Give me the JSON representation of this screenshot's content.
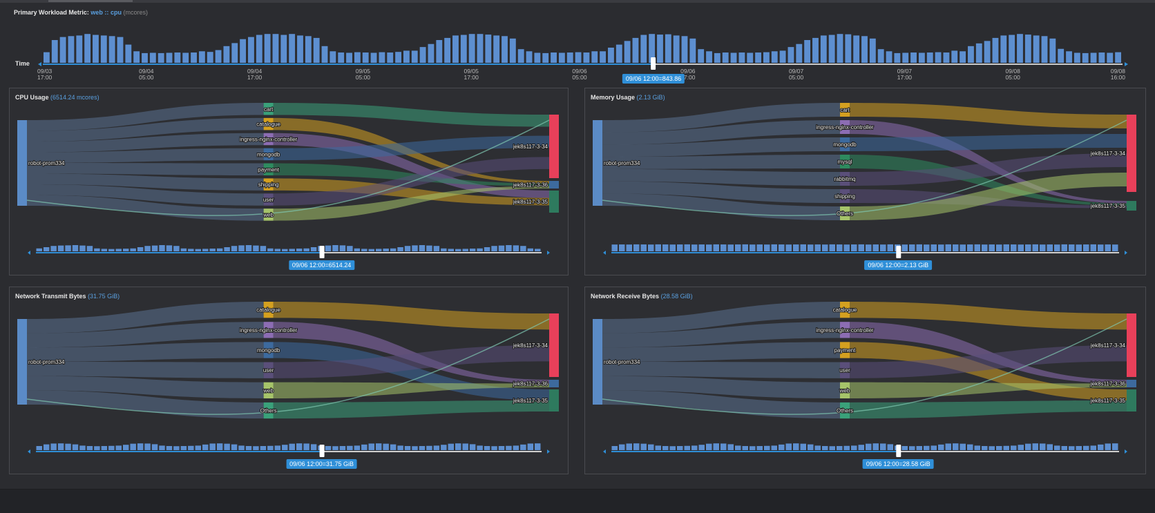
{
  "metric": {
    "label": "Primary Workload Metric:",
    "workload": "web",
    "sep": "::",
    "metric": "cpu",
    "unit": "(mcores)"
  },
  "timeline": {
    "time_label": "Time",
    "ticks": [
      [
        "09/03",
        "17:00"
      ],
      [
        "09/04",
        "05:00"
      ],
      [
        "09/04",
        "17:00"
      ],
      [
        "09/05",
        "05:00"
      ],
      [
        "09/05",
        "17:00"
      ],
      [
        "09/06",
        "05:00"
      ],
      [
        "09/06",
        "17:00"
      ],
      [
        "09/07",
        "05:00"
      ],
      [
        "09/07",
        "17:00"
      ],
      [
        "09/08",
        "05:00"
      ],
      [
        "09/08",
        "16:00"
      ]
    ],
    "bar_levels": [
      0.35,
      0.75,
      0.85,
      0.88,
      0.9,
      0.95,
      0.92,
      0.9,
      0.88,
      0.85,
      0.6,
      0.38,
      0.32,
      0.33,
      0.32,
      0.33,
      0.34,
      0.33,
      0.34,
      0.38,
      0.36,
      0.42,
      0.55,
      0.65,
      0.78,
      0.85,
      0.92,
      0.95,
      0.95,
      0.92,
      0.95,
      0.9,
      0.88,
      0.82,
      0.55,
      0.38,
      0.34,
      0.33,
      0.35,
      0.34,
      0.33,
      0.35,
      0.34,
      0.36,
      0.4,
      0.4,
      0.52,
      0.62,
      0.75,
      0.82,
      0.9,
      0.92,
      0.95,
      0.95,
      0.93,
      0.9,
      0.88,
      0.8,
      0.45,
      0.38,
      0.33,
      0.32,
      0.34,
      0.33,
      0.34,
      0.35,
      0.34,
      0.38,
      0.38,
      0.5,
      0.6,
      0.72,
      0.82,
      0.92,
      0.95,
      0.93,
      0.94,
      0.9,
      0.88,
      0.8,
      0.45,
      0.38,
      0.32,
      0.34,
      0.33,
      0.34,
      0.33,
      0.34,
      0.35,
      0.38,
      0.4,
      0.52,
      0.62,
      0.75,
      0.82,
      0.9,
      0.92,
      0.95,
      0.94,
      0.9,
      0.88,
      0.8,
      0.45,
      0.38,
      0.32,
      0.33,
      0.34,
      0.33,
      0.34,
      0.35,
      0.34,
      0.4,
      0.38,
      0.55,
      0.64,
      0.72,
      0.82,
      0.9,
      0.92,
      0.95,
      0.93,
      0.9,
      0.88,
      0.8,
      0.46,
      0.38,
      0.33,
      0.32,
      0.33,
      0.34,
      0.33,
      0.35
    ],
    "selected_fraction": 0.565,
    "selected_label": "09/06 12:00=843.86"
  },
  "panels": [
    {
      "title": "CPU Usage",
      "value": "(6514.24 mcores)",
      "source": "robot-prom334",
      "middle": [
        [
          "cart",
          "#3aa17a"
        ],
        [
          "catalogue",
          "#d4a020"
        ],
        [
          "ingress-nginx-controller",
          "#8c6db3"
        ],
        [
          "mongodb",
          "#3d6a9e"
        ],
        [
          "payment",
          "#2e8b5f"
        ],
        [
          "shipping",
          "#d4a020"
        ],
        [
          "user",
          "#5a4f7a"
        ],
        [
          "web",
          "#a6c46a"
        ]
      ],
      "targets": [
        [
          "jek8s117-3-34",
          "#e8405a"
        ],
        [
          "jek8s117-3-36",
          "#3d6a9e"
        ],
        [
          "jek8s117-3-35",
          "#2e7a5e"
        ]
      ],
      "selected_label": "09/06 12:00=6514.24",
      "mini_levels": [
        0.35,
        0.5,
        0.65,
        0.7,
        0.72,
        0.75,
        0.7,
        0.65,
        0.35,
        0.3,
        0.28,
        0.3,
        0.32,
        0.35,
        0.5,
        0.65,
        0.7,
        0.75,
        0.72,
        0.65,
        0.35,
        0.3,
        0.28,
        0.3,
        0.33,
        0.35,
        0.5,
        0.65,
        0.72,
        0.75,
        0.7,
        0.65,
        0.35,
        0.3,
        0.28,
        0.3,
        0.33,
        0.35,
        0.5,
        0.65,
        0.7,
        0.75,
        0.72,
        0.65,
        0.35,
        0.3,
        0.28,
        0.3,
        0.33,
        0.35,
        0.5,
        0.65,
        0.72,
        0.75,
        0.7,
        0.65,
        0.35,
        0.3,
        0.28,
        0.3,
        0.33,
        0.35,
        0.5,
        0.65,
        0.7,
        0.75,
        0.72,
        0.65,
        0.35,
        0.3
      ]
    },
    {
      "title": "Memory Usage",
      "value": "(2.13 GiB)",
      "source": "robot-prom334",
      "middle": [
        [
          "cart",
          "#d4a020"
        ],
        [
          "ingress-nginx-controller",
          "#8c6db3"
        ],
        [
          "mongodb",
          "#3d6a9e"
        ],
        [
          "mysql",
          "#2e8b5f"
        ],
        [
          "rabbitmq",
          "#5a4f7a"
        ],
        [
          "shipping",
          "#5a4f7a"
        ],
        [
          "Others",
          "#a6c46a"
        ]
      ],
      "targets": [
        [
          "jek8s117-3-34",
          "#e8405a"
        ],
        [
          "jek8s117-3-35",
          "#2e7a5e"
        ]
      ],
      "selected_label": "09/06 12:00=2.13 GiB",
      "mini_levels": [
        0.82,
        0.83,
        0.82,
        0.84,
        0.83,
        0.82,
        0.84,
        0.83,
        0.82,
        0.83,
        0.84,
        0.82,
        0.83,
        0.82,
        0.84,
        0.83,
        0.82,
        0.83,
        0.84,
        0.82,
        0.83,
        0.82,
        0.84,
        0.83,
        0.82,
        0.83,
        0.84,
        0.82,
        0.83,
        0.82,
        0.84,
        0.83,
        0.82,
        0.83,
        0.84,
        0.82,
        0.83,
        0.82,
        0.84,
        0.83,
        0.82,
        0.83,
        0.84,
        0.82,
        0.83,
        0.82,
        0.84,
        0.83,
        0.82,
        0.83,
        0.84,
        0.82,
        0.83,
        0.82,
        0.84,
        0.83,
        0.82,
        0.83,
        0.84,
        0.82,
        0.83,
        0.82,
        0.84,
        0.83,
        0.82,
        0.83,
        0.84,
        0.82,
        0.83,
        0.82
      ]
    },
    {
      "title": "Network Transmit Bytes",
      "value": "(31.75 GiB)",
      "source": "robot-prom334",
      "middle": [
        [
          "catalogue",
          "#d4a020"
        ],
        [
          "ingress-nginx-controller",
          "#8c6db3"
        ],
        [
          "mongodb",
          "#3d6a9e"
        ],
        [
          "user",
          "#5a4f7a"
        ],
        [
          "web",
          "#a6c46a"
        ],
        [
          "Others",
          "#3aa17a"
        ]
      ],
      "targets": [
        [
          "jek8s117-3-34",
          "#e8405a"
        ],
        [
          "jek8s117-3-36",
          "#3d6a9e"
        ],
        [
          "jek8s117-3-35",
          "#2e7a5e"
        ]
      ],
      "selected_label": "09/06 12:00=31.75 GiB",
      "mini_levels": [
        0.5,
        0.7,
        0.8,
        0.82,
        0.78,
        0.7,
        0.55,
        0.5,
        0.48,
        0.5,
        0.52,
        0.55,
        0.65,
        0.78,
        0.82,
        0.8,
        0.72,
        0.55,
        0.5,
        0.48,
        0.5,
        0.52,
        0.55,
        0.68,
        0.8,
        0.82,
        0.78,
        0.7,
        0.55,
        0.5,
        0.48,
        0.5,
        0.52,
        0.55,
        0.65,
        0.78,
        0.82,
        0.8,
        0.72,
        0.55,
        0.5,
        0.48,
        0.5,
        0.52,
        0.55,
        0.68,
        0.8,
        0.82,
        0.78,
        0.7,
        0.55,
        0.5,
        0.48,
        0.5,
        0.52,
        0.55,
        0.65,
        0.78,
        0.82,
        0.8,
        0.72,
        0.55,
        0.5,
        0.48,
        0.5,
        0.52,
        0.55,
        0.68,
        0.8,
        0.82
      ]
    },
    {
      "title": "Network Receive Bytes",
      "value": "(28.58 GiB)",
      "source": "robot-prom334",
      "middle": [
        [
          "catalogue",
          "#d4a020"
        ],
        [
          "ingress-nginx-controller",
          "#8c6db3"
        ],
        [
          "payment",
          "#d4a020"
        ],
        [
          "user",
          "#5a4f7a"
        ],
        [
          "web",
          "#a6c46a"
        ],
        [
          "Others",
          "#3aa17a"
        ]
      ],
      "targets": [
        [
          "jek8s117-3-34",
          "#e8405a"
        ],
        [
          "jek8s117-3-36",
          "#3d6a9e"
        ],
        [
          "jek8s117-3-35",
          "#2e7a5e"
        ]
      ],
      "selected_label": "09/06 12:00=28.58 GiB",
      "mini_levels": [
        0.5,
        0.7,
        0.8,
        0.82,
        0.78,
        0.7,
        0.55,
        0.5,
        0.48,
        0.5,
        0.52,
        0.55,
        0.65,
        0.78,
        0.82,
        0.8,
        0.72,
        0.55,
        0.5,
        0.48,
        0.5,
        0.52,
        0.55,
        0.68,
        0.8,
        0.82,
        0.78,
        0.7,
        0.55,
        0.5,
        0.48,
        0.5,
        0.52,
        0.55,
        0.65,
        0.78,
        0.82,
        0.8,
        0.72,
        0.55,
        0.5,
        0.48,
        0.5,
        0.52,
        0.55,
        0.68,
        0.8,
        0.82,
        0.78,
        0.7,
        0.55,
        0.5,
        0.48,
        0.5,
        0.52,
        0.55,
        0.65,
        0.78,
        0.82,
        0.8,
        0.72,
        0.55,
        0.5,
        0.48,
        0.5,
        0.52,
        0.55,
        0.68,
        0.8,
        0.82
      ]
    }
  ]
}
